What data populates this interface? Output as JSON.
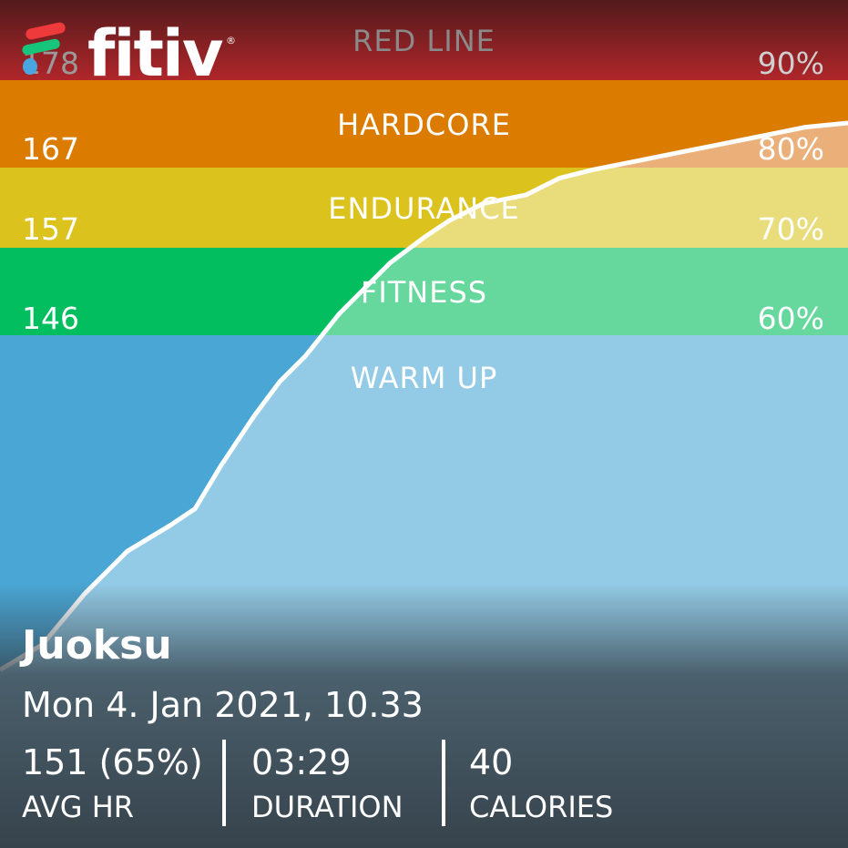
{
  "brand": {
    "name": "fitiv",
    "registered_mark": "®"
  },
  "zones": [
    {
      "name": "RED LINE",
      "bpm": "178",
      "percent": "90%",
      "color": "#b0262a",
      "color_light": "#c77a6a"
    },
    {
      "name": "HARDCORE",
      "bpm": "167",
      "percent": "80%",
      "color": "#db7b00",
      "color_light": "#ebb079"
    },
    {
      "name": "ENDURANCE",
      "bpm": "157",
      "percent": "70%",
      "color": "#dcc21c",
      "color_light": "#e8dd7a"
    },
    {
      "name": "FITNESS",
      "bpm": "146",
      "percent": "60%",
      "color": "#03be5e",
      "color_light": "#66d89e"
    },
    {
      "name": "WARM UP",
      "bpm": "",
      "percent": "",
      "color": "#4aa6d4",
      "color_light": "#93cbe6"
    }
  ],
  "workout": {
    "title": "Juoksu",
    "datetime": "Mon 4. Jan 2021, 10.33",
    "stats": [
      {
        "value": "151 (65%)",
        "label": "AVG HR"
      },
      {
        "value": "03:29",
        "label": "DURATION"
      },
      {
        "value": "40",
        "label": "CALORIES"
      }
    ]
  },
  "chart_data": {
    "type": "line",
    "series": [
      {
        "values_fraction_of_time_and_zone": true,
        "x": [
          0.0,
          0.05,
          0.1,
          0.15,
          0.2,
          0.23,
          0.26,
          0.3,
          0.33,
          0.36,
          0.4,
          0.43,
          0.46,
          0.5,
          0.53,
          0.57,
          0.62,
          0.66,
          0.7,
          0.75,
          0.8,
          0.85,
          0.9,
          0.95,
          1.0
        ],
        "y": [
          0.21,
          0.24,
          0.3,
          0.35,
          0.38,
          0.4,
          0.45,
          0.51,
          0.55,
          0.58,
          0.63,
          0.66,
          0.69,
          0.72,
          0.74,
          0.76,
          0.77,
          0.79,
          0.8,
          0.81,
          0.82,
          0.83,
          0.84,
          0.85,
          0.855
        ]
      }
    ]
  }
}
